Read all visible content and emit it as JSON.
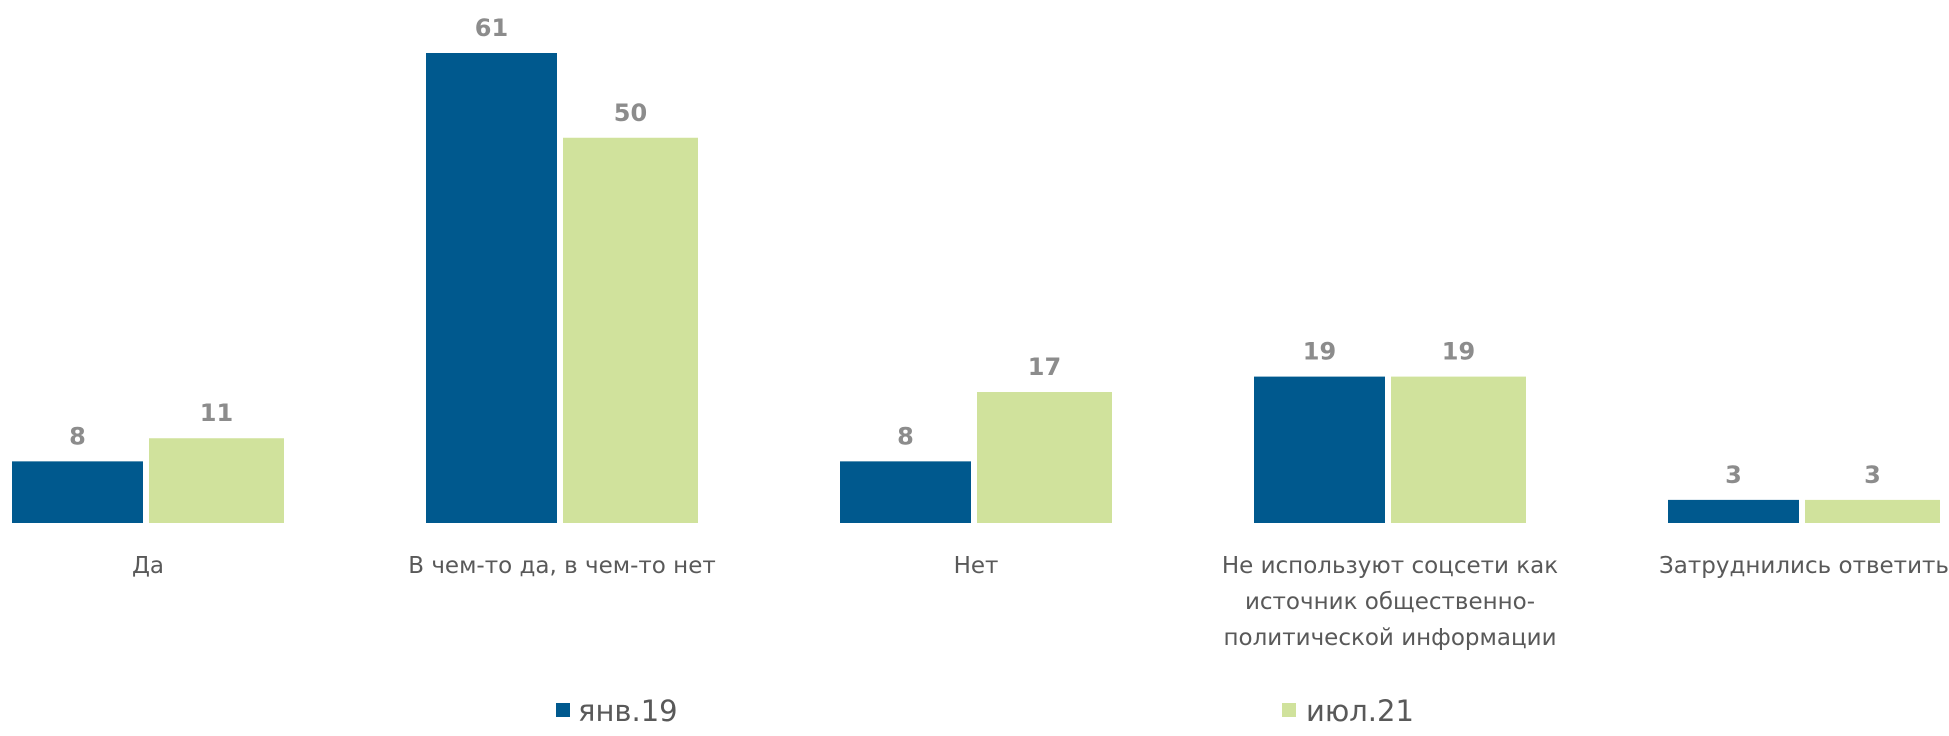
{
  "chart_data": {
    "type": "bar",
    "title": "",
    "xlabel": "",
    "ylabel": "",
    "ylim": [
      0,
      61
    ],
    "grid": false,
    "legend_position": "bottom",
    "categories": [
      [
        "Да"
      ],
      [
        "В чем-то да, в чем-то нет"
      ],
      [
        "Нет"
      ],
      [
        "Не используют соцсети как",
        "источник общественно-",
        "политической информации"
      ],
      [
        "Затруднились ответить"
      ]
    ],
    "series": [
      {
        "name": "янв.19",
        "color": "#00598e",
        "values": [
          8,
          61,
          8,
          19,
          3
        ]
      },
      {
        "name": "июл.21",
        "color": "#d0e29c",
        "values": [
          11,
          50,
          17,
          19,
          3
        ]
      }
    ]
  }
}
